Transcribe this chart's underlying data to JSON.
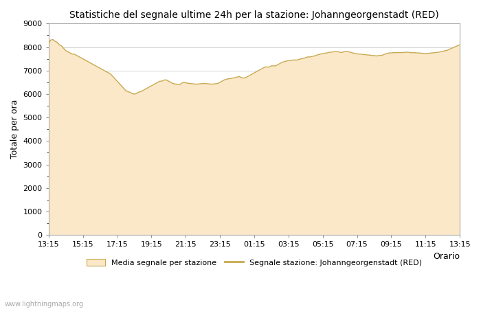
{
  "title": "Statistiche del segnale ultime 24h per la stazione: Johanngeorgenstadt (RED)",
  "xlabel": "Orario",
  "ylabel": "Totale per ora",
  "ylim": [
    0,
    9000
  ],
  "yticks": [
    0,
    1000,
    2000,
    3000,
    4000,
    5000,
    6000,
    7000,
    8000,
    9000
  ],
  "xtick_labels": [
    "13:15",
    "15:15",
    "17:15",
    "19:15",
    "21:15",
    "23:15",
    "01:15",
    "03:15",
    "05:15",
    "07:15",
    "09:15",
    "11:15",
    "13:15"
  ],
  "fill_color": "#FAE8C8",
  "line_color": "#C8A850",
  "line_width": 1.0,
  "bg_color": "#FFFFFF",
  "plot_bg_color": "#FFFFFF",
  "grid_color": "#CCCCCC",
  "watermark": "www.lightningmaps.org",
  "legend_fill_label": "Media segnale per stazione",
  "legend_line_label": "Segnale stazione: Johanngeorgenstadt (RED)",
  "x_values": [
    0,
    0.25,
    0.5,
    0.75,
    1,
    1.25,
    1.5,
    1.75,
    2,
    2.25,
    2.5,
    2.75,
    3,
    3.25,
    3.5,
    3.75,
    4,
    4.25,
    4.5,
    4.75,
    5,
    5.25,
    5.5,
    5.75,
    6,
    6.25,
    6.5,
    6.75,
    7,
    7.25,
    7.5,
    7.75,
    8,
    8.25,
    8.5,
    8.75,
    9,
    9.25,
    9.5,
    9.75,
    10,
    10.25,
    10.5,
    10.75,
    11,
    11.25,
    11.5,
    11.75,
    12,
    12.25,
    12.5,
    12.75,
    13,
    13.25,
    13.5,
    13.75,
    14,
    14.25,
    14.5,
    14.75,
    15,
    15.25,
    15.5,
    15.75,
    16,
    16.25,
    16.5,
    16.75,
    17,
    17.25,
    17.5,
    17.75,
    18,
    18.25,
    18.5,
    18.75,
    19,
    19.25,
    19.5,
    19.75,
    20,
    20.25,
    20.5,
    20.75,
    21,
    21.25,
    21.5,
    21.75,
    22,
    22.25,
    22.5,
    22.75,
    23,
    23.25,
    23.5,
    23.75,
    24,
    24.25,
    24.5,
    24.75,
    25,
    25.25,
    25.5,
    25.75,
    26,
    26.25,
    26.5,
    26.75,
    27,
    27.25,
    27.5,
    27.75,
    28,
    28.25,
    28.5,
    28.75,
    29,
    29.25,
    29.5,
    29.75,
    30,
    30.25,
    30.5,
    30.75,
    31,
    31.25,
    31.5,
    31.75,
    32,
    32.25,
    32.5,
    32.75,
    33,
    33.25,
    33.5,
    33.75,
    34,
    34.25,
    34.5,
    34.75,
    35,
    35.25,
    35.5,
    35.75,
    36,
    36.25,
    36.5,
    36.75,
    37,
    37.25,
    37.5,
    37.75,
    38,
    38.25,
    38.5,
    38.75,
    39,
    39.25,
    39.5,
    39.75,
    40,
    40.25,
    40.5,
    40.75,
    41,
    41.25,
    41.5,
    41.75,
    42,
    42.25,
    42.5,
    42.75,
    43,
    43.25,
    43.5,
    43.75,
    44,
    44.25,
    44.5,
    44.75,
    45,
    45.25,
    45.5,
    45.75,
    46,
    46.25,
    46.5,
    46.75,
    47,
    47.25,
    47.5,
    47.75,
    48
  ],
  "y_values": [
    8150,
    8300,
    8320,
    8250,
    8200,
    8100,
    8050,
    7950,
    7850,
    7800,
    7750,
    7700,
    7700,
    7650,
    7600,
    7550,
    7500,
    7450,
    7400,
    7350,
    7300,
    7250,
    7200,
    7150,
    7100,
    7050,
    7000,
    6950,
    6900,
    6850,
    6750,
    6650,
    6550,
    6450,
    6350,
    6250,
    6150,
    6100,
    6080,
    6020,
    6000,
    6020,
    6080,
    6100,
    6150,
    6200,
    6250,
    6300,
    6350,
    6400,
    6450,
    6500,
    6550,
    6550,
    6600,
    6600,
    6550,
    6500,
    6450,
    6430,
    6420,
    6400,
    6450,
    6500,
    6480,
    6460,
    6450,
    6440,
    6430,
    6420,
    6430,
    6440,
    6450,
    6450,
    6440,
    6430,
    6420,
    6430,
    6440,
    6450,
    6500,
    6550,
    6600,
    6630,
    6650,
    6660,
    6680,
    6700,
    6720,
    6750,
    6700,
    6680,
    6700,
    6750,
    6800,
    6850,
    6900,
    6950,
    7000,
    7050,
    7100,
    7150,
    7150,
    7150,
    7200,
    7200,
    7200,
    7250,
    7300,
    7350,
    7380,
    7400,
    7430,
    7420,
    7450,
    7450,
    7450,
    7480,
    7500,
    7520,
    7550,
    7580,
    7580,
    7600,
    7620,
    7650,
    7680,
    7700,
    7720,
    7740,
    7750,
    7780,
    7780,
    7800,
    7810,
    7800,
    7780,
    7770,
    7800,
    7820,
    7800,
    7780,
    7750,
    7730,
    7710,
    7700,
    7700,
    7680,
    7680,
    7660,
    7660,
    7640,
    7640,
    7620,
    7640,
    7640,
    7660,
    7700,
    7720,
    7750,
    7750,
    7760,
    7760,
    7770,
    7760,
    7770,
    7770,
    7780,
    7780,
    7760,
    7760,
    7760,
    7750,
    7750,
    7740,
    7730,
    7720,
    7730,
    7740,
    7750,
    7760,
    7770,
    7780,
    7800,
    7820,
    7840,
    7860,
    7900,
    7940,
    7980,
    8020,
    8060,
    8100
  ]
}
